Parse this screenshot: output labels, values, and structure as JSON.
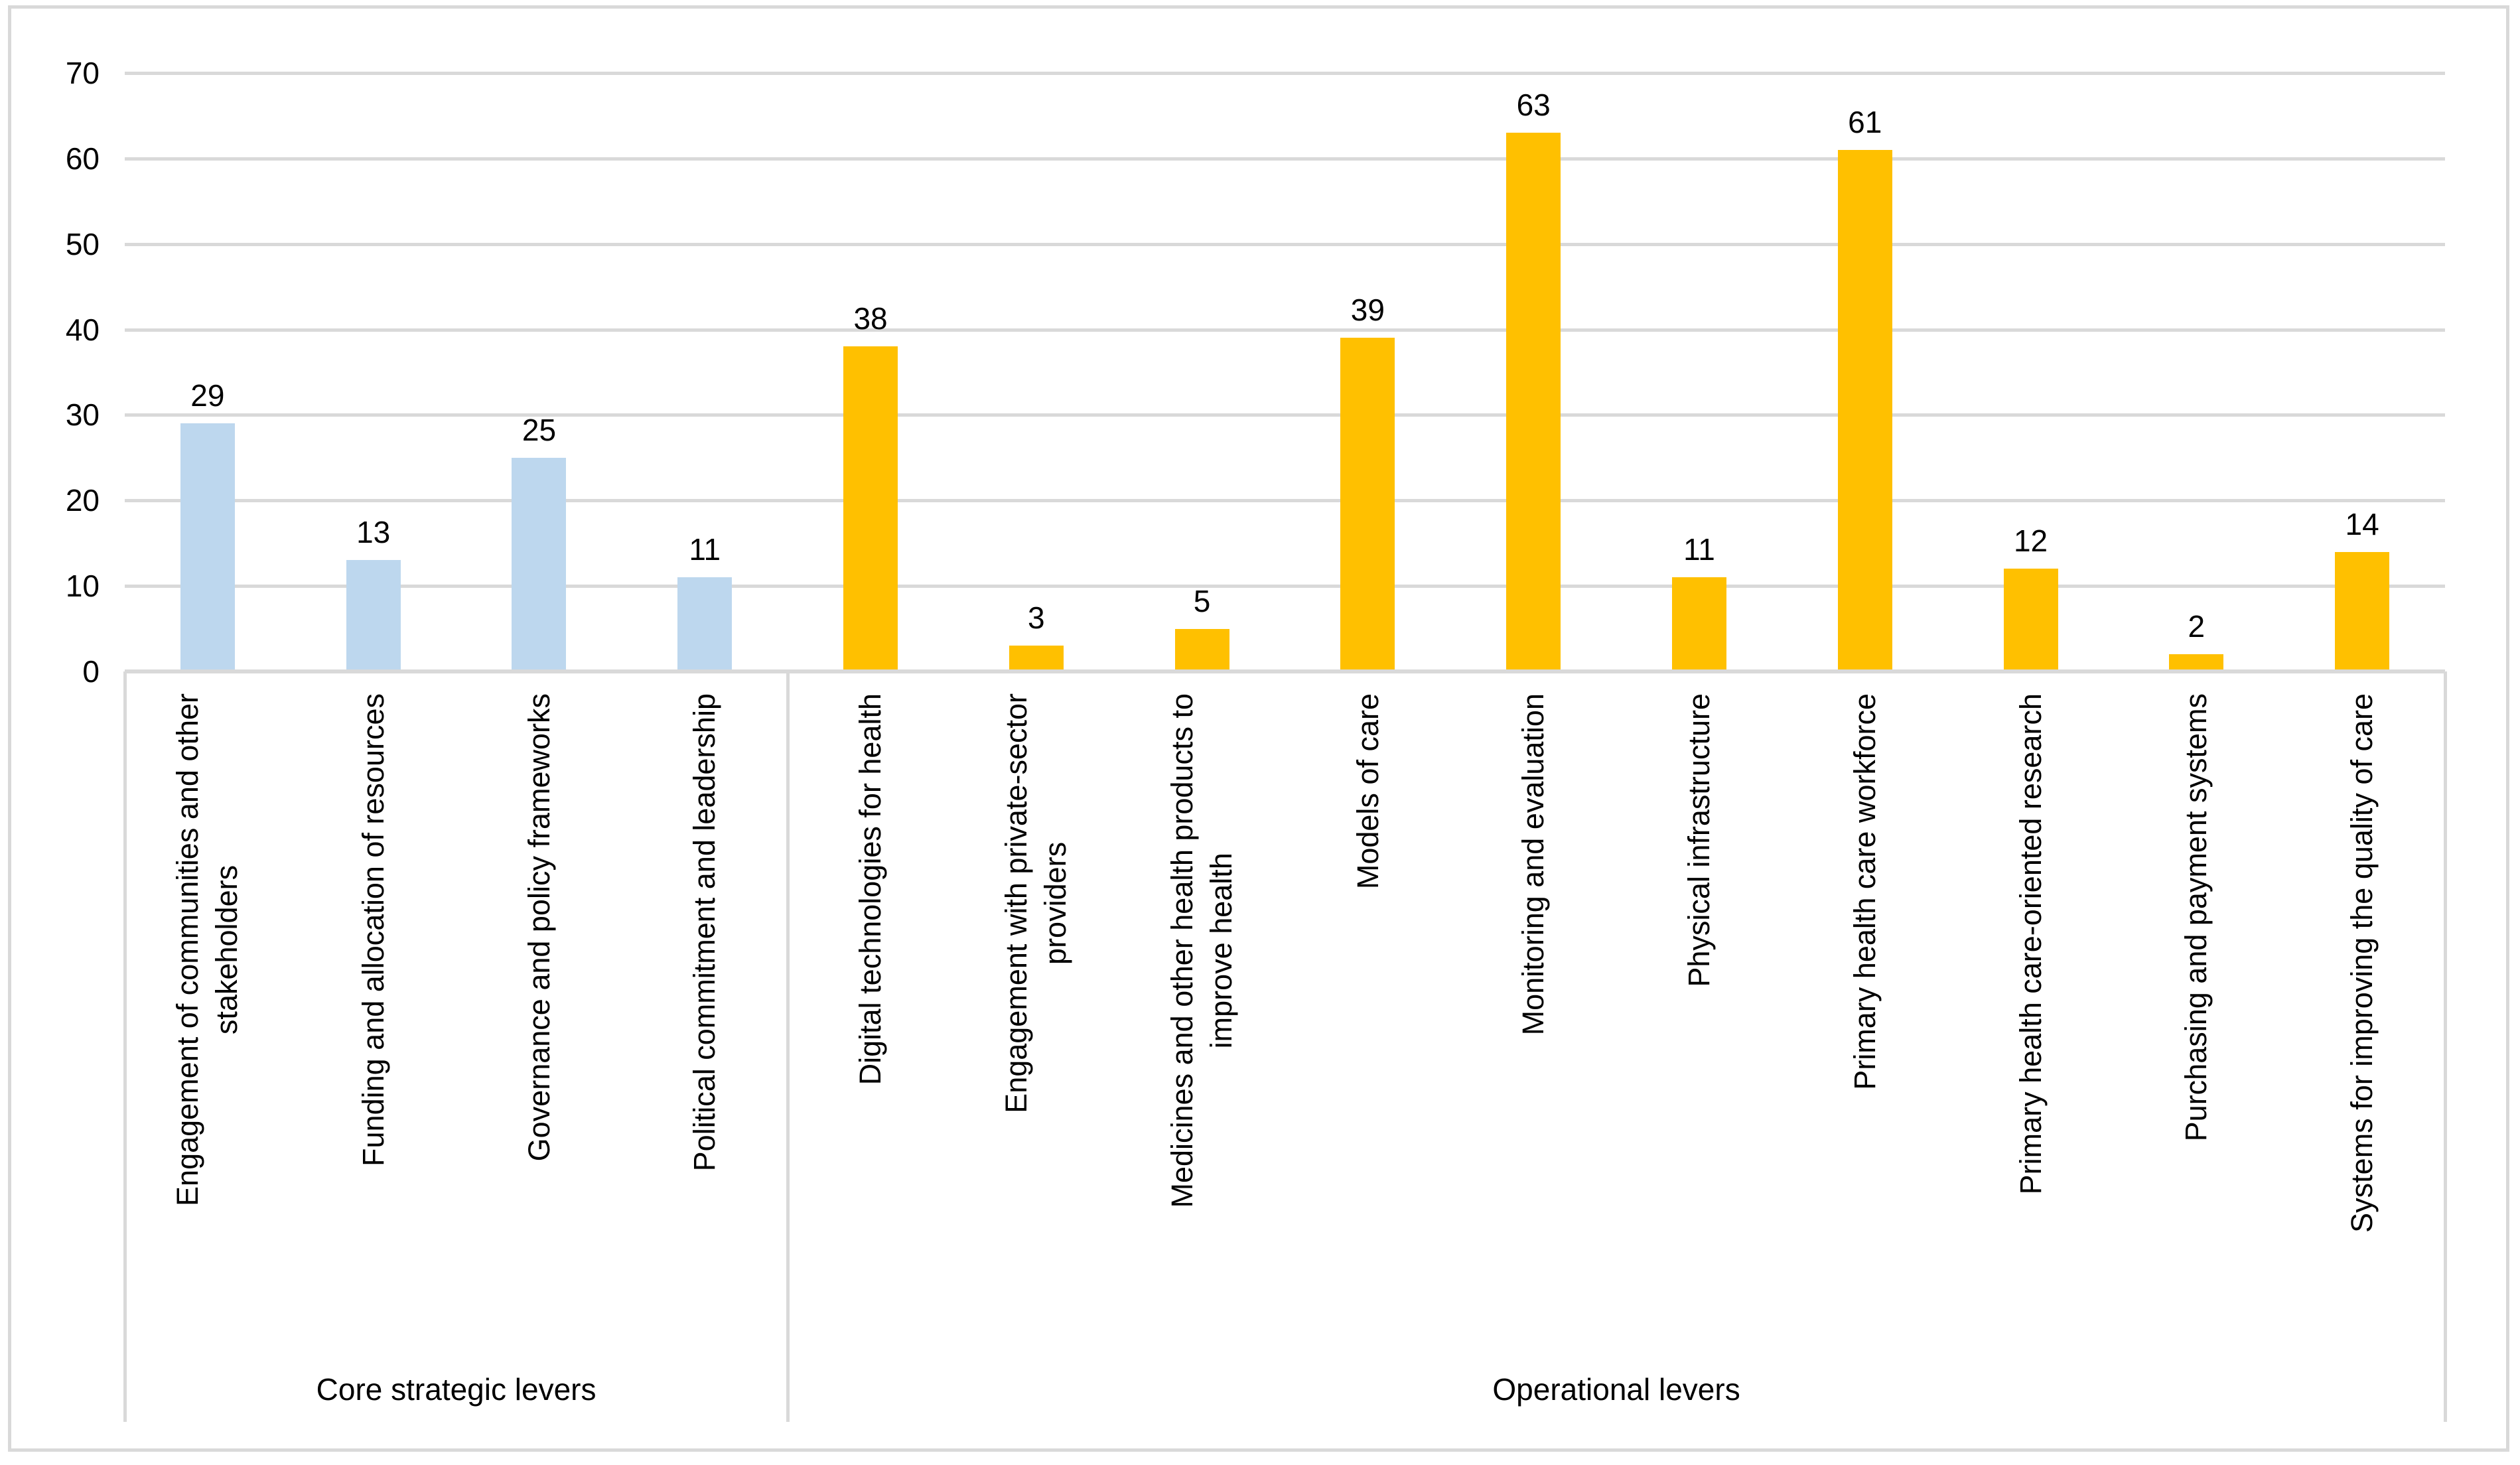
{
  "figure": {
    "background": "#ffffff",
    "border_color": "#d9d9d9",
    "gridline_color": "#d9d9d9",
    "text_color": "#000000"
  },
  "chart_data": {
    "type": "bar",
    "title": "",
    "xlabel": "",
    "ylabel": "",
    "ylim": [
      0,
      70
    ],
    "ytick_step": 10,
    "ytick_labels": [
      "0",
      "10",
      "20",
      "30",
      "40",
      "50",
      "60",
      "70"
    ],
    "grid": true,
    "legend": "none",
    "categories": [
      "Engagement of communities and other stakeholders",
      "Funding and allocation of resources",
      "Governance and policy frameworks",
      "Political commitment and leadership",
      "Digital technologies for health",
      "Engagement with private-sector providers",
      "Medicines and other health products to improve health",
      "Models of care",
      "Monitoring and evaluation",
      "Physical infrastructure",
      "Primary health care workforce",
      "Primary health care-oriented research",
      "Purchasing and payment systems",
      "Systems for improving the quality of care"
    ],
    "values": [
      29,
      13,
      25,
      11,
      38,
      3,
      5,
      39,
      63,
      11,
      61,
      12,
      2,
      14
    ],
    "series": [
      {
        "name": "Core strategic levers",
        "color": "#bdd7ee",
        "values": [
          29,
          13,
          25,
          11
        ]
      },
      {
        "name": "Operational levers",
        "color": "#ffc000",
        "values": [
          38,
          3,
          5,
          39,
          63,
          11,
          61,
          12,
          2,
          14
        ]
      }
    ],
    "groups": [
      {
        "label": "Core strategic levers",
        "color": "#bdd7ee",
        "items": [
          {
            "lines": [
              "Engagement of communities and other",
              "stakeholders"
            ],
            "value": 29
          },
          {
            "lines": [
              "Funding and allocation of resources"
            ],
            "value": 13
          },
          {
            "lines": [
              "Governance and policy frameworks"
            ],
            "value": 25
          },
          {
            "lines": [
              "Political commitment and leadership"
            ],
            "value": 11
          }
        ]
      },
      {
        "label": "Operational levers",
        "color": "#ffc000",
        "items": [
          {
            "lines": [
              "Digital technologies for health"
            ],
            "value": 38
          },
          {
            "lines": [
              "Engagement with private-sector",
              "providers"
            ],
            "value": 3
          },
          {
            "lines": [
              "Medicines and other health products to",
              "improve health"
            ],
            "value": 5
          },
          {
            "lines": [
              "Models of care"
            ],
            "value": 39
          },
          {
            "lines": [
              "Monitoring and evaluation"
            ],
            "value": 63
          },
          {
            "lines": [
              "Physical infrastructure"
            ],
            "value": 11
          },
          {
            "lines": [
              "Primary health care workforce"
            ],
            "value": 61
          },
          {
            "lines": [
              "Primary health care-oriented research"
            ],
            "value": 12
          },
          {
            "lines": [
              "Purchasing and payment systems"
            ],
            "value": 2
          },
          {
            "lines": [
              "Systems for improving the quality of care"
            ],
            "value": 14
          }
        ]
      }
    ]
  }
}
